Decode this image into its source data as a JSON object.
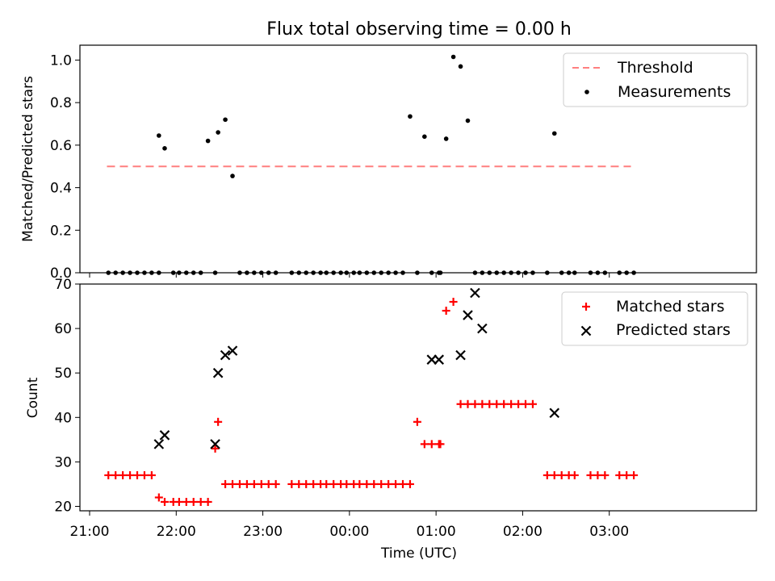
{
  "chart_data": [
    {
      "type": "scatter",
      "title": "Flux total observing time = 0.00 h",
      "xlabel": "",
      "ylabel": "Matched/Predicted stars",
      "ylim": [
        0,
        1.07
      ],
      "yticks": [
        "0.0",
        "0.2",
        "0.4",
        "0.6",
        "0.8",
        "1.0"
      ],
      "legend_placement": "top-right",
      "legend": [
        "Threshold",
        "Measurements"
      ],
      "threshold": {
        "name": "Threshold",
        "value": 0.5,
        "x_range": [
          "21:12",
          "03:15"
        ],
        "color": "#ff7f7f"
      },
      "series": [
        {
          "name": "Measurements",
          "color": "#000000",
          "x": [
            "21:13",
            "21:18",
            "21:23",
            "21:28",
            "21:33",
            "21:38",
            "21:43",
            "21:48",
            "21:48",
            "21:52",
            "21:58",
            "22:02",
            "22:07",
            "22:12",
            "22:17",
            "22:22",
            "22:27",
            "22:29",
            "22:34",
            "22:39",
            "22:44",
            "22:49",
            "22:54",
            "22:59",
            "23:04",
            "23:09",
            "23:20",
            "23:25",
            "23:30",
            "23:35",
            "23:40",
            "23:44",
            "23:49",
            "23:54",
            "23:58",
            "24:03",
            "24:07",
            "24:12",
            "24:17",
            "24:22",
            "24:27",
            "24:32",
            "24:37",
            "24:42",
            "24:47",
            "24:52",
            "24:57",
            "25:02",
            "25:03",
            "25:07",
            "25:12",
            "25:17",
            "25:22",
            "25:27",
            "25:32",
            "25:37",
            "25:42",
            "25:47",
            "25:52",
            "25:57",
            "26:02",
            "26:07",
            "26:17",
            "26:22",
            "26:27",
            "26:32",
            "26:36",
            "26:47",
            "26:52",
            "26:57",
            "27:07",
            "27:12",
            "27:17"
          ],
          "y": [
            0,
            0,
            0,
            0,
            0,
            0,
            0,
            0.645,
            0,
            0.585,
            0,
            0,
            0,
            0,
            0,
            0.62,
            0,
            0.66,
            0.72,
            0.455,
            0,
            0,
            0,
            0,
            0,
            0,
            0,
            0,
            0,
            0,
            0,
            0,
            0,
            0,
            0,
            0,
            0,
            0,
            0,
            0,
            0,
            0,
            0,
            0.735,
            0,
            0.64,
            0,
            0,
            0,
            0.63,
            1.015,
            0.97,
            0.715,
            0,
            0,
            0,
            0,
            0,
            0,
            0,
            0,
            0,
            0,
            0.655,
            0,
            0,
            0,
            0,
            0,
            0,
            0,
            0,
            0
          ]
        }
      ]
    },
    {
      "type": "scatter",
      "title": "",
      "xlabel": "Time (UTC)",
      "ylabel": "Count",
      "ylim": [
        19,
        70
      ],
      "yticks": [
        "20",
        "30",
        "40",
        "50",
        "60",
        "70"
      ],
      "xticks": [
        "21:00",
        "22:00",
        "23:00",
        "00:00",
        "01:00",
        "02:00",
        "03:00"
      ],
      "legend_placement": "top-right",
      "legend": [
        "Matched stars",
        "Predicted stars"
      ],
      "series": [
        {
          "name": "Matched stars",
          "color": "#ff0000",
          "x": [
            "21:13",
            "21:18",
            "21:23",
            "21:28",
            "21:33",
            "21:38",
            "21:43",
            "21:48",
            "21:52",
            "21:58",
            "22:02",
            "22:07",
            "22:12",
            "22:17",
            "22:22",
            "22:27",
            "22:29",
            "22:34",
            "22:39",
            "22:44",
            "22:49",
            "22:54",
            "22:59",
            "23:04",
            "23:09",
            "23:20",
            "23:25",
            "23:30",
            "23:35",
            "23:40",
            "23:44",
            "23:49",
            "23:54",
            "23:58",
            "24:03",
            "24:07",
            "24:12",
            "24:17",
            "24:22",
            "24:27",
            "24:32",
            "24:37",
            "24:42",
            "24:47",
            "24:52",
            "24:57",
            "25:02",
            "25:03",
            "25:07",
            "25:12",
            "25:17",
            "25:22",
            "25:27",
            "25:32",
            "25:37",
            "25:42",
            "25:47",
            "25:52",
            "25:57",
            "26:02",
            "26:07",
            "26:17",
            "26:22",
            "26:27",
            "26:32",
            "26:36",
            "26:47",
            "26:52",
            "26:57",
            "27:07",
            "27:12",
            "27:17"
          ],
          "y": [
            27,
            27,
            27,
            27,
            27,
            27,
            27,
            22,
            21,
            21,
            21,
            21,
            21,
            21,
            21,
            33,
            39,
            25,
            25,
            25,
            25,
            25,
            25,
            25,
            25,
            25,
            25,
            25,
            25,
            25,
            25,
            25,
            25,
            25,
            25,
            25,
            25,
            25,
            25,
            25,
            25,
            25,
            25,
            39,
            34,
            34,
            34,
            34,
            64,
            66,
            43,
            43,
            43,
            43,
            43,
            43,
            43,
            43,
            43,
            43,
            43,
            27,
            27,
            27,
            27,
            27,
            27,
            27,
            27,
            27,
            27,
            27
          ]
        },
        {
          "name": "Predicted stars",
          "color": "#000000",
          "x": [
            "21:48",
            "21:52",
            "22:27",
            "22:29",
            "22:34",
            "22:39",
            "24:57",
            "25:02",
            "25:17",
            "25:22",
            "25:27",
            "25:32",
            "26:22"
          ],
          "y": [
            34,
            36,
            34,
            50,
            54,
            55,
            53,
            53,
            54,
            63,
            68,
            60,
            41
          ]
        }
      ]
    }
  ]
}
